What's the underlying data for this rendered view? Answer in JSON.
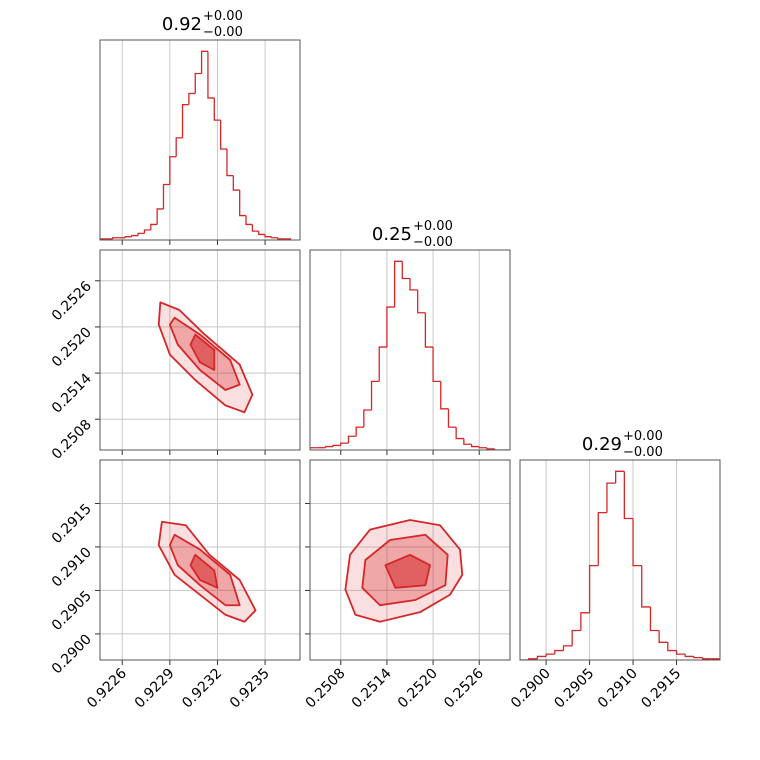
{
  "chart_data": [
    {
      "type": "histogram",
      "color": "#d62728",
      "grid": true,
      "title": {
        "value": "0.92",
        "plus": "+0.00",
        "minus": "−0.00"
      },
      "xlim": [
        0.92246,
        0.92372
      ],
      "xticks": [
        0.9226,
        0.9229,
        0.9232,
        0.9235
      ],
      "bins": [
        0.92246,
        0.9225,
        0.92254,
        0.92258,
        0.92262,
        0.92266,
        0.9227,
        0.92274,
        0.92278,
        0.92282,
        0.92286,
        0.9229,
        0.92294,
        0.92298,
        0.92302,
        0.92306,
        0.9231,
        0.92314,
        0.92318,
        0.92322,
        0.92326,
        0.9233,
        0.92334,
        0.92338,
        0.92342,
        0.92346,
        0.9235,
        0.92354,
        0.92358,
        0.92362,
        0.92366
      ],
      "counts": [
        1,
        1,
        2,
        2,
        3,
        4,
        6,
        9,
        14,
        28,
        50,
        75,
        92,
        122,
        132,
        150,
        170,
        128,
        108,
        82,
        58,
        45,
        22,
        14,
        8,
        5,
        3,
        2,
        1,
        1
      ]
    },
    {
      "type": "contour",
      "color": "#d62728",
      "grid": true,
      "xlim": [
        0.92246,
        0.92372
      ],
      "xticks": [
        0.9226,
        0.9229,
        0.9232,
        0.9235
      ],
      "ylim": [
        0.2504,
        0.253
      ],
      "yticks": [
        0.2508,
        0.2514,
        {
          "value": 0.252,
          "label": "0.2520"
        },
        0.2526
      ],
      "levels": [
        {
          "x": [
            0.92284,
            0.92296,
            0.92312,
            0.92334,
            0.92342,
            0.92337,
            0.92325,
            0.92306,
            0.9229,
            0.92283
          ],
          "y": [
            0.25232,
            0.25222,
            0.2519,
            0.25151,
            0.25112,
            0.25089,
            0.25098,
            0.25131,
            0.25164,
            0.25203
          ]
        },
        {
          "x": [
            0.92293,
            0.92309,
            0.92328,
            0.92334,
            0.92325,
            0.92309,
            0.92295,
            0.9229
          ],
          "y": [
            0.25212,
            0.2519,
            0.25157,
            0.25125,
            0.25118,
            0.25144,
            0.25177,
            0.25203
          ]
        },
        {
          "x": [
            0.92306,
            0.92318,
            0.92318,
            0.92309,
            0.92303
          ],
          "y": [
            0.2519,
            0.2517,
            0.25144,
            0.25154,
            0.25177
          ]
        }
      ]
    },
    {
      "type": "contour",
      "color": "#d62728",
      "grid": true,
      "xlim": [
        0.92246,
        0.92372
      ],
      "xticks": [
        0.9226,
        0.9229,
        0.9232,
        0.9235
      ],
      "ylim": [
        0.2897,
        0.292
      ],
      "yticks": [
        {
          "value": 0.29,
          "label": "0.2900"
        },
        0.2905,
        {
          "value": 0.291,
          "label": "0.2910"
        },
        0.2915
      ],
      "levels": [
        {
          "x": [
            0.92285,
            0.923,
            0.92315,
            0.92334,
            0.92344,
            0.92337,
            0.92325,
            0.92309,
            0.92293,
            0.92283
          ],
          "y": [
            0.29129,
            0.29125,
            0.29091,
            0.29062,
            0.29027,
            0.29014,
            0.29022,
            0.29045,
            0.29068,
            0.29102
          ]
        },
        {
          "x": [
            0.92293,
            0.92309,
            0.92328,
            0.92334,
            0.92325,
            0.92309,
            0.92295,
            0.9229
          ],
          "y": [
            0.29114,
            0.29097,
            0.29068,
            0.29033,
            0.29033,
            0.29056,
            0.29079,
            0.29102
          ]
        },
        {
          "x": [
            0.92306,
            0.92318,
            0.9232,
            0.92309,
            0.92303
          ],
          "y": [
            0.29091,
            0.29073,
            0.29053,
            0.29062,
            0.29079
          ]
        }
      ]
    },
    {
      "type": "histogram",
      "color": "#d62728",
      "grid": true,
      "title": {
        "value": "0.25",
        "plus": "+0.00",
        "minus": "−0.00"
      },
      "xlim": [
        0.2504,
        0.253
      ],
      "xticks": [
        0.2508,
        0.2514,
        {
          "value": 0.252,
          "label": "0.2520"
        },
        0.2526
      ],
      "bins": [
        0.2504,
        0.2505,
        0.2506,
        0.2507,
        0.2508,
        0.2509,
        0.251,
        0.2511,
        0.2512,
        0.2513,
        0.2514,
        0.2515,
        0.2516,
        0.2517,
        0.2518,
        0.2519,
        0.252,
        0.2521,
        0.2522,
        0.2523,
        0.2524,
        0.2525,
        0.2526,
        0.2527,
        0.2528,
        0.2529,
        0.253
      ],
      "counts": [
        2,
        2,
        3,
        4,
        6,
        12,
        20,
        35,
        60,
        90,
        125,
        165,
        150,
        140,
        120,
        90,
        60,
        36,
        20,
        10,
        5,
        3,
        2,
        1,
        0,
        0
      ]
    },
    {
      "type": "contour",
      "color": "#d62728",
      "grid": true,
      "xlim": [
        0.2504,
        0.253
      ],
      "xticks": [
        0.2508,
        0.2514,
        {
          "value": 0.252,
          "label": "0.2520"
        },
        0.2526
      ],
      "ylim": [
        0.2897,
        0.292
      ],
      "yticks": [
        {
          "value": 0.29,
          "label": "0.2900"
        },
        0.2905,
        {
          "value": 0.291,
          "label": "0.2910"
        },
        0.2915
      ],
      "levels": [
        {
          "x": [
            0.25092,
            0.25118,
            0.2517,
            0.25209,
            0.25235,
            0.25238,
            0.25222,
            0.25183,
            0.25131,
            0.25099,
            0.25086
          ],
          "y": [
            0.29091,
            0.2912,
            0.29131,
            0.29125,
            0.29097,
            0.29068,
            0.29045,
            0.29025,
            0.29014,
            0.29022,
            0.29051
          ]
        },
        {
          "x": [
            0.25112,
            0.25144,
            0.2519,
            0.25219,
            0.25216,
            0.25177,
            0.25131,
            0.25108
          ],
          "y": [
            0.29085,
            0.29108,
            0.29114,
            0.29091,
            0.29056,
            0.29039,
            0.29033,
            0.29053
          ]
        },
        {
          "x": [
            0.25138,
            0.2517,
            0.25196,
            0.2519,
            0.25151
          ],
          "y": [
            0.29079,
            0.29091,
            0.29079,
            0.29056,
            0.29053
          ]
        }
      ]
    },
    {
      "type": "histogram",
      "color": "#d62728",
      "grid": true,
      "title": {
        "value": "0.29",
        "plus": "+0.00",
        "minus": "−0.00"
      },
      "xlim": [
        0.2897,
        0.292
      ],
      "xticks": [
        {
          "value": 0.29,
          "label": "0.2900"
        },
        0.2905,
        {
          "value": 0.291,
          "label": "0.2910"
        },
        0.2915
      ],
      "bins": [
        0.2897,
        0.2898,
        0.2899,
        0.29,
        0.2901,
        0.2902,
        0.2903,
        0.2904,
        0.2905,
        0.2906,
        0.2907,
        0.2908,
        0.2909,
        0.291,
        0.2911,
        0.2912,
        0.2913,
        0.2914,
        0.2915,
        0.2916,
        0.2917,
        0.2918,
        0.2919,
        0.292
      ],
      "counts": [
        0,
        1,
        3,
        5,
        8,
        12,
        25,
        40,
        80,
        125,
        150,
        160,
        120,
        80,
        45,
        25,
        15,
        8,
        5,
        3,
        2,
        1,
        1
      ]
    }
  ]
}
